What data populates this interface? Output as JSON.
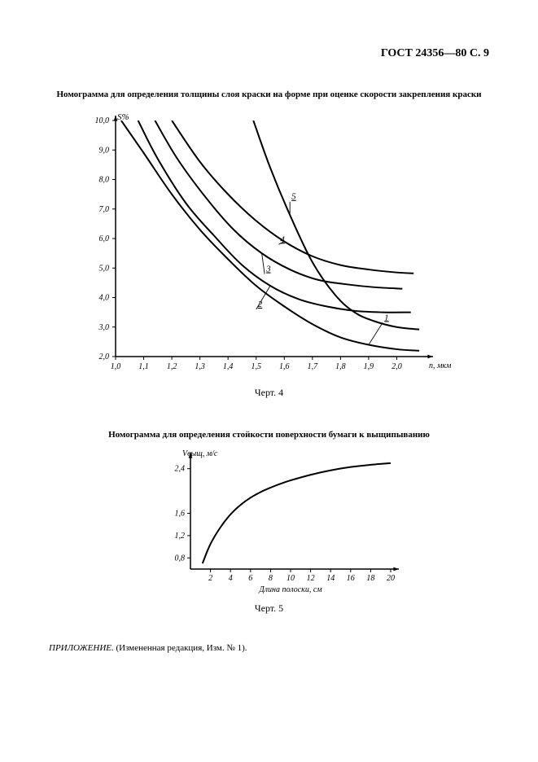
{
  "header": "ГОСТ 24356—80 С. 9",
  "chart4": {
    "type": "line",
    "title": "Номограмма для определения толщины слоя краски на форме при оценке скорости закрепления краски",
    "caption": "Черт. 4",
    "y_axis_label": "S%",
    "x_axis_label": "n, мкм",
    "xlim": [
      1.0,
      2.1
    ],
    "ylim": [
      2.0,
      10.0
    ],
    "x_ticks": [
      "1,0",
      "1,1",
      "1,2",
      "1,3",
      "1,4",
      "1,5",
      "1,6",
      "1,7",
      "1,8",
      "1,9",
      "2,0"
    ],
    "y_ticks": [
      "2,0",
      "3,0",
      "4,0",
      "5,0",
      "6,0",
      "7,0",
      "8,0",
      "9,0",
      "10,0"
    ],
    "axis_color": "#000000",
    "line_color": "#000000",
    "line_width": 2.0,
    "background_color": "#ffffff",
    "tick_font_size": 10,
    "series": [
      {
        "label": "1",
        "label_xy": [
          1.95,
          3.15
        ],
        "points": [
          [
            1.02,
            10.0
          ],
          [
            1.1,
            8.9
          ],
          [
            1.2,
            7.5
          ],
          [
            1.3,
            6.3
          ],
          [
            1.4,
            5.3
          ],
          [
            1.5,
            4.4
          ],
          [
            1.6,
            3.7
          ],
          [
            1.7,
            3.1
          ],
          [
            1.8,
            2.65
          ],
          [
            1.9,
            2.4
          ],
          [
            2.0,
            2.25
          ],
          [
            2.08,
            2.2
          ]
        ]
      },
      {
        "label": "2",
        "label_xy": [
          1.5,
          3.6
        ],
        "points": [
          [
            1.08,
            10.0
          ],
          [
            1.15,
            8.7
          ],
          [
            1.25,
            7.2
          ],
          [
            1.35,
            6.1
          ],
          [
            1.45,
            5.1
          ],
          [
            1.55,
            4.4
          ],
          [
            1.65,
            3.95
          ],
          [
            1.75,
            3.7
          ],
          [
            1.85,
            3.55
          ],
          [
            1.95,
            3.5
          ],
          [
            2.05,
            3.5
          ]
        ]
      },
      {
        "label": "3",
        "label_xy": [
          1.53,
          4.8
        ],
        "points": [
          [
            1.14,
            10.0
          ],
          [
            1.22,
            8.7
          ],
          [
            1.32,
            7.4
          ],
          [
            1.42,
            6.3
          ],
          [
            1.52,
            5.5
          ],
          [
            1.62,
            4.95
          ],
          [
            1.72,
            4.6
          ],
          [
            1.82,
            4.45
          ],
          [
            1.92,
            4.35
          ],
          [
            2.02,
            4.3
          ]
        ]
      },
      {
        "label": "4",
        "label_xy": [
          1.58,
          5.8
        ],
        "points": [
          [
            1.2,
            10.0
          ],
          [
            1.3,
            8.6
          ],
          [
            1.4,
            7.5
          ],
          [
            1.5,
            6.6
          ],
          [
            1.6,
            5.9
          ],
          [
            1.7,
            5.4
          ],
          [
            1.8,
            5.1
          ],
          [
            1.9,
            4.95
          ],
          [
            2.0,
            4.85
          ],
          [
            2.06,
            4.82
          ]
        ]
      },
      {
        "label": "5",
        "label_xy": [
          1.62,
          7.25
        ],
        "points": [
          [
            1.49,
            10.0
          ],
          [
            1.55,
            8.4
          ],
          [
            1.62,
            6.8
          ],
          [
            1.7,
            5.2
          ],
          [
            1.78,
            4.1
          ],
          [
            1.85,
            3.5
          ],
          [
            1.92,
            3.2
          ],
          [
            2.0,
            3.0
          ],
          [
            2.08,
            2.92
          ]
        ]
      }
    ]
  },
  "chart5": {
    "type": "line",
    "title": "Номограмма для определения стойкости поверхности бумаги к выщипыванию",
    "caption": "Черт. 5",
    "y_axis_label": "Vвыщ, м/с",
    "x_axis_label": "Длина полоски, см",
    "xlim": [
      0,
      20
    ],
    "ylim": [
      0.6,
      2.6
    ],
    "x_ticks": [
      "2",
      "4",
      "6",
      "8",
      "10",
      "12",
      "14",
      "16",
      "18",
      "20"
    ],
    "y_ticks": [
      "0,8",
      "1,2",
      "1,6",
      "2,4"
    ],
    "y_tick_vals": [
      0.8,
      1.2,
      1.6,
      2.4
    ],
    "axis_color": "#000000",
    "line_color": "#000000",
    "line_width": 2.0,
    "background_color": "#ffffff",
    "tick_font_size": 10,
    "series": [
      {
        "points": [
          [
            1.2,
            0.7
          ],
          [
            2,
            1.05
          ],
          [
            3,
            1.35
          ],
          [
            4,
            1.58
          ],
          [
            5,
            1.75
          ],
          [
            6,
            1.88
          ],
          [
            7,
            1.98
          ],
          [
            8,
            2.06
          ],
          [
            9,
            2.13
          ],
          [
            10,
            2.19
          ],
          [
            12,
            2.29
          ],
          [
            14,
            2.37
          ],
          [
            16,
            2.43
          ],
          [
            18,
            2.47
          ],
          [
            20,
            2.5
          ]
        ]
      }
    ]
  },
  "footnote_prefix": "ПРИЛОЖЕНИЕ.",
  "footnote_rest": " (Измененная редакция, Изм. № 1)."
}
